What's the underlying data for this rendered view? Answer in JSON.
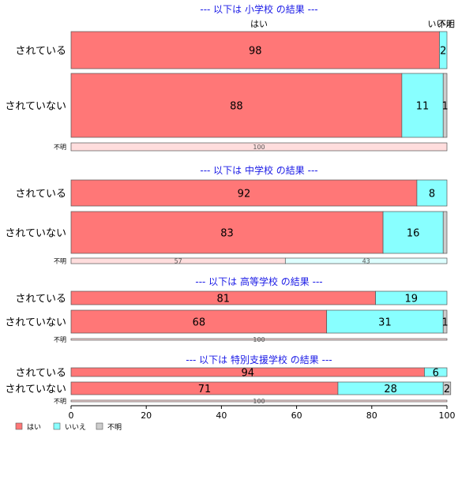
{
  "chart_data": {
    "type": "bar",
    "orientation": "horizontal",
    "stacked": true,
    "xlim": [
      0,
      100
    ],
    "xticks": [
      0,
      20,
      40,
      60,
      80,
      100
    ],
    "header_labels": [
      "はい",
      "いいえ",
      "不明"
    ],
    "legend": {
      "position": "bottom-left",
      "entries": [
        {
          "name": "はい",
          "color": "#ff7777"
        },
        {
          "name": "いいえ",
          "color": "#88ffff"
        },
        {
          "name": "不明",
          "color": "#cccccc"
        }
      ]
    },
    "colors": {
      "yes": "#ff7777",
      "no": "#88ffff",
      "unknown": "#cccccc",
      "yes_light": "#ffdddd",
      "no_light": "#ddffff",
      "unknown_light": "#eeeeee",
      "title": "#1a1ae6"
    },
    "sections": [
      {
        "title": "--- 以下は 小学校 の結果 ---",
        "rows": [
          {
            "category": "されている",
            "values": [
              98,
              2,
              0
            ],
            "labels": [
              "98",
              "2",
              ""
            ]
          },
          {
            "category": "されていない",
            "values": [
              88,
              11,
              1
            ],
            "labels": [
              "88",
              "11",
              "1"
            ]
          },
          {
            "category": "不明",
            "values": [
              100,
              0,
              0
            ],
            "labels": [
              "100",
              "",
              ""
            ]
          }
        ]
      },
      {
        "title": "--- 以下は 中学校 の結果 ---",
        "rows": [
          {
            "category": "されている",
            "values": [
              92,
              8,
              0
            ],
            "labels": [
              "92",
              "8",
              ""
            ]
          },
          {
            "category": "されていない",
            "values": [
              83,
              16,
              1
            ],
            "labels": [
              "83",
              "16",
              ""
            ]
          },
          {
            "category": "不明",
            "values": [
              57,
              43,
              0
            ],
            "labels": [
              "57",
              "43",
              ""
            ]
          }
        ]
      },
      {
        "title": "--- 以下は 高等学校 の結果 ---",
        "rows": [
          {
            "category": "されている",
            "values": [
              81,
              19,
              0
            ],
            "labels": [
              "81",
              "19",
              ""
            ]
          },
          {
            "category": "されていない",
            "values": [
              68,
              31,
              1
            ],
            "labels": [
              "68",
              "31",
              "1"
            ]
          },
          {
            "category": "不明",
            "values": [
              100,
              0,
              0
            ],
            "labels": [
              "100",
              "",
              ""
            ]
          }
        ]
      },
      {
        "title": "--- 以下は 特別支援学校 の結果 ---",
        "rows": [
          {
            "category": "されている",
            "values": [
              94,
              6,
              0
            ],
            "labels": [
              "94",
              "6",
              ""
            ]
          },
          {
            "category": "されていない",
            "values": [
              71,
              28,
              2
            ],
            "labels": [
              "71",
              "28",
              "2"
            ]
          },
          {
            "category": "不明",
            "values": [
              100,
              0,
              0
            ],
            "labels": [
              "100",
              "",
              ""
            ]
          }
        ]
      }
    ]
  }
}
